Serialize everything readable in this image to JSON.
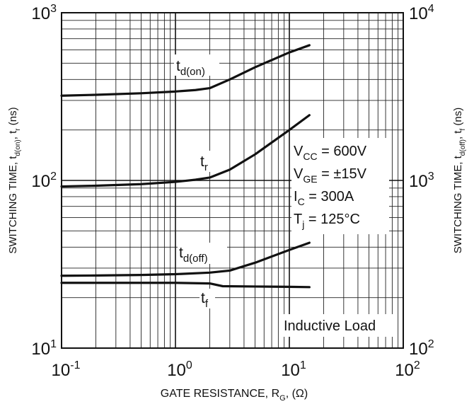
{
  "chart_data": {
    "type": "line",
    "xscale": "log",
    "yscale": "log",
    "xlim": [
      0.1,
      100
    ],
    "ylim_left": [
      10,
      1000
    ],
    "ylim_right": [
      100,
      10000
    ],
    "grid": true,
    "xlabel": {
      "main": "GATE RESISTANCE, R",
      "sub": "G",
      "tail": ", (Ω)"
    },
    "ylabel_left": {
      "main": "SWITCHING TIME, t",
      "sub1": "d(on)",
      "mid": ", t",
      "sub2": "r",
      "tail": " (ns)"
    },
    "ylabel_right": {
      "main": "SWITCHING TIME, t",
      "sub1": "d(off)",
      "mid": ", t",
      "sub2": "f",
      "tail": " (ns)"
    },
    "x_ticks": [
      {
        "value": 0.1,
        "base": "10",
        "exp": "-1"
      },
      {
        "value": 1,
        "base": "10",
        "exp": "0"
      },
      {
        "value": 10,
        "base": "10",
        "exp": "1"
      },
      {
        "value": 100,
        "base": "10",
        "exp": "2"
      }
    ],
    "y_ticks_left": [
      {
        "value": 10,
        "base": "10",
        "exp": "1"
      },
      {
        "value": 100,
        "base": "10",
        "exp": "2"
      },
      {
        "value": 1000,
        "base": "10",
        "exp": "3"
      }
    ],
    "y_ticks_right": [
      {
        "value": 100,
        "base": "10",
        "exp": "2"
      },
      {
        "value": 1000,
        "base": "10",
        "exp": "3"
      },
      {
        "value": 10000,
        "base": "10",
        "exp": "4"
      }
    ],
    "series": [
      {
        "label_main": "t",
        "label_sub": "d(on)",
        "axis": "left",
        "x": [
          0.1,
          0.2,
          0.5,
          1,
          1.5,
          2,
          3,
          5,
          10,
          15
        ],
        "y": [
          320,
          324,
          331,
          339,
          346,
          355,
          400,
          473,
          580,
          640
        ]
      },
      {
        "label_main": "t",
        "label_sub": "r",
        "axis": "left",
        "x": [
          0.1,
          0.2,
          0.5,
          1,
          1.5,
          2,
          3,
          5,
          10,
          15
        ],
        "y": [
          92,
          93,
          95,
          98,
          101,
          104,
          116,
          143,
          200,
          245
        ]
      },
      {
        "label_main": "t",
        "label_sub": "d(off)",
        "axis": "right",
        "x": [
          0.1,
          0.2,
          0.5,
          1,
          2,
          3,
          5,
          10,
          15
        ],
        "y": [
          270,
          271,
          273,
          276,
          282,
          290,
          323,
          385,
          425
        ]
      },
      {
        "label_main": "t",
        "label_sub": "f",
        "axis": "right",
        "x": [
          0.1,
          0.5,
          1,
          2,
          2.6,
          5,
          10,
          15
        ],
        "y": [
          245,
          245,
          245,
          243,
          234,
          233,
          232,
          231
        ]
      }
    ],
    "conditions": [
      {
        "main": "V",
        "sub": "CC",
        "tail": " = 600V"
      },
      {
        "main": "V",
        "sub": "GE",
        "tail": " = ±15V"
      },
      {
        "main": "I",
        "sub": "C",
        "tail": " = 300A"
      },
      {
        "main": "T",
        "sub": "j",
        "tail": " = 125°C"
      }
    ],
    "note": "Inductive Load"
  }
}
